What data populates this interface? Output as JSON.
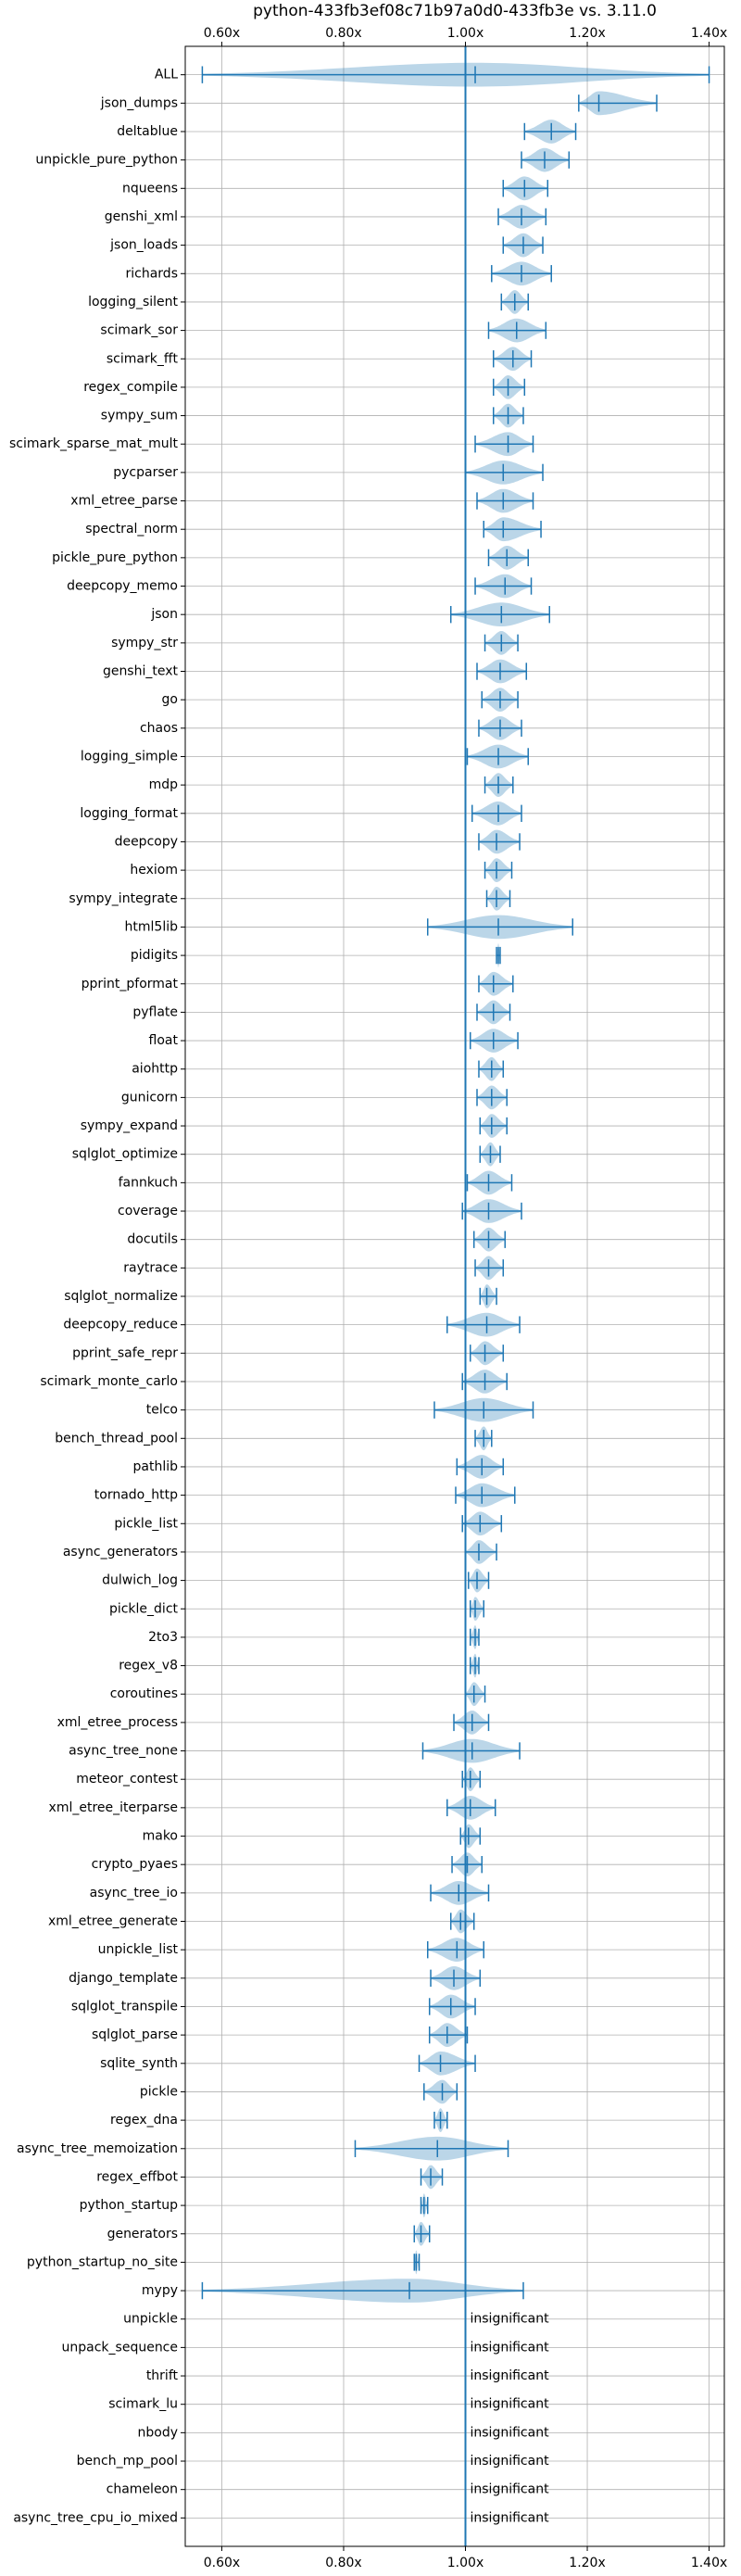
{
  "chart_data": {
    "type": "violin",
    "title": "python-433fb3ef08c71b97a0d0-433fb3e vs. 3.11.0",
    "color": "#1f77b4",
    "grid": true,
    "reference_line": 1.0,
    "xlim": [
      0.54,
      1.425
    ],
    "xticks": [
      {
        "value": 0.6,
        "label": "0.60x"
      },
      {
        "value": 0.8,
        "label": "0.80x"
      },
      {
        "value": 1.0,
        "label": "1.00x"
      },
      {
        "value": 1.2,
        "label": "1.20x"
      },
      {
        "value": 1.4,
        "label": "1.40x"
      }
    ],
    "categories": [
      "ALL",
      "json_dumps",
      "deltablue",
      "unpickle_pure_python",
      "nqueens",
      "genshi_xml",
      "json_loads",
      "richards",
      "logging_silent",
      "scimark_sor",
      "scimark_fft",
      "regex_compile",
      "sympy_sum",
      "scimark_sparse_mat_mult",
      "pycparser",
      "xml_etree_parse",
      "spectral_norm",
      "pickle_pure_python",
      "deepcopy_memo",
      "json",
      "sympy_str",
      "genshi_text",
      "go",
      "chaos",
      "logging_simple",
      "mdp",
      "logging_format",
      "deepcopy",
      "hexiom",
      "sympy_integrate",
      "html5lib",
      "pidigits",
      "pprint_pformat",
      "pyflate",
      "float",
      "aiohttp",
      "gunicorn",
      "sympy_expand",
      "sqlglot_optimize",
      "fannkuch",
      "coverage",
      "docutils",
      "raytrace",
      "sqlglot_normalize",
      "deepcopy_reduce",
      "pprint_safe_repr",
      "scimark_monte_carlo",
      "telco",
      "bench_thread_pool",
      "pathlib",
      "tornado_http",
      "pickle_list",
      "async_generators",
      "dulwich_log",
      "pickle_dict",
      "2to3",
      "regex_v8",
      "coroutines",
      "xml_etree_process",
      "async_tree_none",
      "meteor_contest",
      "xml_etree_iterparse",
      "mako",
      "crypto_pyaes",
      "async_tree_io",
      "xml_etree_generate",
      "unpickle_list",
      "django_template",
      "sqlglot_transpile",
      "sqlglot_parse",
      "sqlite_synth",
      "pickle",
      "regex_dna",
      "async_tree_memoization",
      "regex_effbot",
      "python_startup",
      "generators",
      "python_startup_no_site",
      "mypy",
      "unpickle",
      "unpack_sequence",
      "thrift",
      "scimark_lu",
      "nbody",
      "bench_mp_pool",
      "chameleon",
      "async_tree_cpu_io_mixed"
    ],
    "low": [
      0.568,
      1.186,
      1.097,
      1.092,
      1.062,
      1.054,
      1.062,
      1.043,
      1.059,
      1.038,
      1.046,
      1.046,
      1.046,
      1.016,
      1.0,
      1.019,
      1.03,
      1.038,
      1.016,
      0.976,
      1.032,
      1.019,
      1.027,
      1.022,
      1.003,
      1.032,
      1.011,
      1.022,
      1.032,
      1.035,
      0.938,
      1.051,
      1.022,
      1.019,
      1.008,
      1.022,
      1.019,
      1.024,
      1.024,
      1.003,
      0.995,
      1.014,
      1.016,
      1.024,
      0.97,
      1.008,
      0.995,
      0.949,
      1.016,
      0.986,
      0.984,
      0.995,
      1.0,
      1.005,
      1.008,
      1.008,
      1.008,
      1.0,
      0.981,
      0.93,
      0.995,
      0.97,
      0.992,
      0.978,
      0.943,
      0.976,
      0.938,
      0.943,
      0.941,
      0.941,
      0.924,
      0.932,
      0.949,
      0.819,
      0.927,
      0.927,
      0.916,
      0.916,
      0.568,
      null,
      null,
      null,
      null,
      null,
      null,
      null,
      null
    ],
    "values": [
      1.016,
      1.219,
      1.141,
      1.13,
      1.097,
      1.092,
      1.095,
      1.092,
      1.081,
      1.084,
      1.078,
      1.07,
      1.07,
      1.07,
      1.062,
      1.062,
      1.062,
      1.068,
      1.065,
      1.059,
      1.059,
      1.057,
      1.057,
      1.057,
      1.054,
      1.054,
      1.054,
      1.051,
      1.051,
      1.051,
      1.054,
      1.054,
      1.046,
      1.046,
      1.046,
      1.043,
      1.043,
      1.043,
      1.041,
      1.038,
      1.038,
      1.038,
      1.038,
      1.035,
      1.035,
      1.032,
      1.032,
      1.03,
      1.03,
      1.027,
      1.027,
      1.024,
      1.022,
      1.019,
      1.016,
      1.016,
      1.016,
      1.014,
      1.011,
      1.011,
      1.008,
      1.008,
      1.005,
      1.003,
      0.989,
      0.992,
      0.986,
      0.981,
      0.976,
      0.97,
      0.959,
      0.962,
      0.959,
      0.954,
      0.943,
      0.932,
      0.927,
      0.919,
      0.908,
      null,
      null,
      null,
      null,
      null,
      null,
      null,
      null
    ],
    "high": [
      1.4,
      1.314,
      1.181,
      1.17,
      1.135,
      1.132,
      1.127,
      1.141,
      1.103,
      1.132,
      1.108,
      1.097,
      1.095,
      1.111,
      1.127,
      1.111,
      1.124,
      1.103,
      1.108,
      1.138,
      1.086,
      1.1,
      1.086,
      1.092,
      1.103,
      1.078,
      1.092,
      1.089,
      1.076,
      1.073,
      1.176,
      1.057,
      1.078,
      1.073,
      1.086,
      1.062,
      1.068,
      1.068,
      1.057,
      1.076,
      1.092,
      1.065,
      1.062,
      1.051,
      1.089,
      1.062,
      1.068,
      1.111,
      1.043,
      1.062,
      1.081,
      1.059,
      1.051,
      1.038,
      1.03,
      1.022,
      1.022,
      1.032,
      1.038,
      1.089,
      1.024,
      1.049,
      1.024,
      1.027,
      1.038,
      1.014,
      1.03,
      1.024,
      1.016,
      1.003,
      1.016,
      0.986,
      0.97,
      1.07,
      0.962,
      0.938,
      0.941,
      0.924,
      1.095,
      null,
      null,
      null,
      null,
      null,
      null,
      null,
      null
    ],
    "value_labels": [
      null,
      null,
      null,
      null,
      null,
      null,
      null,
      null,
      null,
      null,
      null,
      null,
      null,
      null,
      null,
      null,
      null,
      null,
      null,
      null,
      null,
      null,
      null,
      null,
      null,
      null,
      null,
      null,
      null,
      null,
      null,
      null,
      null,
      null,
      null,
      null,
      null,
      null,
      null,
      null,
      null,
      null,
      null,
      null,
      null,
      null,
      null,
      null,
      null,
      null,
      null,
      null,
      null,
      null,
      null,
      null,
      null,
      null,
      null,
      null,
      null,
      null,
      null,
      null,
      null,
      null,
      null,
      null,
      null,
      null,
      null,
      null,
      null,
      null,
      null,
      null,
      null,
      null,
      null,
      "insignificant",
      "insignificant",
      "insignificant",
      "insignificant",
      "insignificant",
      "insignificant",
      "insignificant",
      "insignificant"
    ]
  }
}
